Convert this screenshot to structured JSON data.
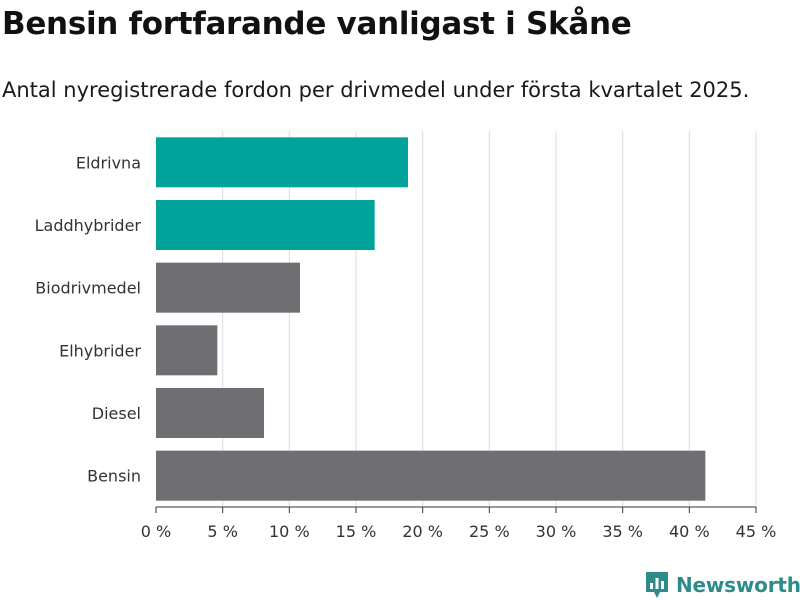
{
  "title": "Bensin fortfarande vanligast i Skåne",
  "subtitle": "Antal nyregistrerade fordon per drivmedel under första kvartalet 2025.",
  "brand": {
    "name": "Newsworthy",
    "icon": "newsworthy-logo-icon",
    "color": "#2e8b89"
  },
  "colors": {
    "highlight": "#00a39a",
    "default": "#6e6e73",
    "grid": "#dcdcdc",
    "axis": "#333333"
  },
  "chart_data": {
    "type": "bar",
    "orientation": "horizontal",
    "categories": [
      "Eldrivna",
      "Laddhybrider",
      "Biodrivmedel",
      "Elhybrider",
      "Diesel",
      "Bensin"
    ],
    "values": [
      18.9,
      16.4,
      10.8,
      4.6,
      8.1,
      41.2
    ],
    "highlighted": [
      true,
      true,
      false,
      false,
      false,
      false
    ],
    "xlim": [
      0,
      45
    ],
    "xticks": [
      0,
      5,
      10,
      15,
      20,
      25,
      30,
      35,
      40,
      45
    ],
    "xtick_labels": [
      "0 %",
      "5 %",
      "10 %",
      "15 %",
      "20 %",
      "25 %",
      "30 %",
      "35 %",
      "40 %",
      "45 %"
    ],
    "grid": true
  }
}
